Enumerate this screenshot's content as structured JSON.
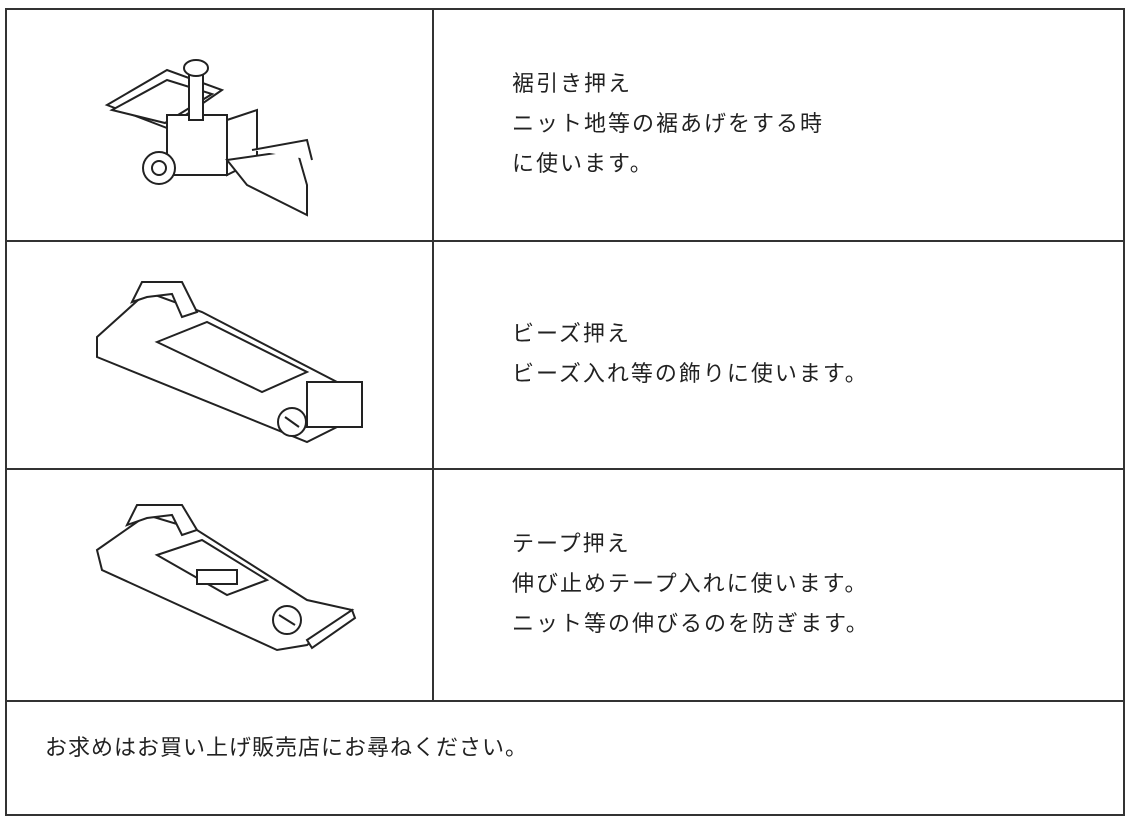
{
  "table": {
    "rows": [
      {
        "title": "裾引き押え",
        "lines": [
          "ニット地等の裾あげをする時",
          "に使います。"
        ]
      },
      {
        "title": "ビーズ押え",
        "lines": [
          "ビーズ入れ等の飾りに使います。"
        ]
      },
      {
        "title": "テープ押え",
        "lines": [
          "伸び止めテープ入れに使います。",
          "ニット等の伸びるのを防ぎます。"
        ]
      }
    ]
  },
  "footer": "お求めはお買い上げ販売店にお尋ねください。"
}
